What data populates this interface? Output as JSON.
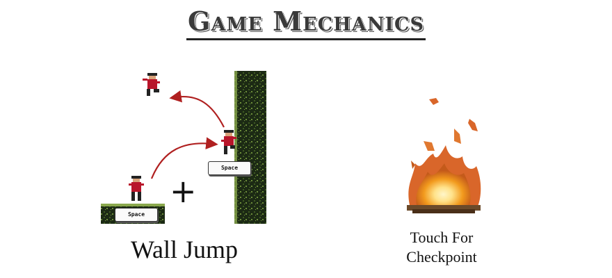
{
  "title": "Game Mechanics",
  "wall_jump": {
    "label": "Wall Jump",
    "plus": "+",
    "key_ground": "Space",
    "key_wall": "Space"
  },
  "checkpoint": {
    "label_line1": "Touch For",
    "label_line2": "Checkpoint"
  },
  "colors": {
    "arrow": "#b02020",
    "wall_dark": "#1c2a14",
    "wall_moss": "#6e8f3a",
    "ninja_red": "#b8152a",
    "fire_core": "#ffe28a",
    "fire_mid": "#f29a1d",
    "fire_outer": "#d9662a"
  }
}
